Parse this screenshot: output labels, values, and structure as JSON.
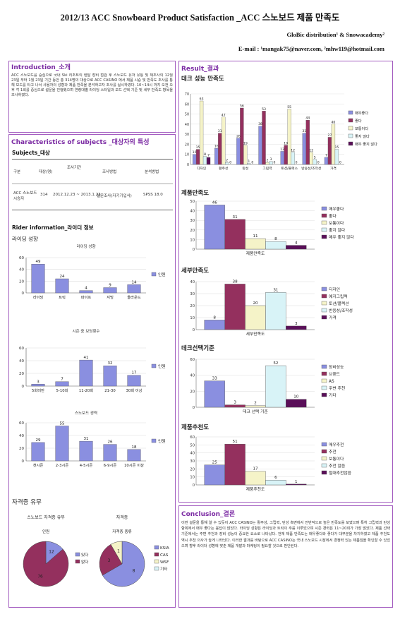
{
  "header": {
    "title": "2012/13 ACC Snowboard Product Satisfaction _ACC 스노보드 제품 만족도",
    "affiliation": "GloBic distribution¹ & Snowacademy²",
    "email": "E-mail : ¹mangak75@naver.com, ²mhw119@hotmail.com"
  },
  "introduction": {
    "title": "Introduction_소개",
    "text": "ACC 스노보드를 중심으로 국내 Ski 리조트의 렌탈 장비 점검 후 스노보드 유저 유통 및 제조사의 12월 23일 부터 1월 23일 기간 동안 총 314명의 대상으로 ACC CASINO 에서 제품 시승 및 만족도 조사를 통해 보드를 타고 나서 사용자의 성향과 제품 만족을 분석하고자 조사를 실시하였다. 10~14시 까지 오전 오후 각 1회를 중심으로 설문을 진행했으며 연령대별 라이딩 스타일과 보드 선택 기준 및 세부 만족도 항목을 조사하였다."
  },
  "subjects": {
    "title": "Characteristics of subjects _대상자의 특성",
    "subtitle": "Subjects_대상",
    "headers": [
      "구분",
      "대상(명)",
      "조사기간",
      "조사방법",
      "분석방법"
    ],
    "row": [
      "ACC 스노보드 시승자",
      "314",
      "2012.12.23 ~ 2013.1.23",
      "설문조사(자기기입식)",
      "SPSS 18.0"
    ]
  },
  "rider": {
    "title": "Rider information_라이더 정보",
    "style_label": "라이딩 성향"
  },
  "satisfaction_deck": {
    "title": "데크 성능 만족도"
  },
  "overall_label": "제품만족도",
  "detail_label": "세부만족도",
  "criteria_label": "데크선택기준",
  "recommend_label": "제품추천도",
  "cert_label": "자격증 유무",
  "results_title": "Result_결과",
  "conclusion": {
    "title": "Conclusion_결론",
    "text": "이번 설문을 통해 알 수 있듯이 ACC CASINO는 활주성, 그립력, 탄성 측면에서 전반적으로 높은 만족도를 보였으며 특히 그립력과 탄성 항목에서 매우 좋다는 응답이 많았다. 라이딩 성향은 라이딩과 트릭이 주를 이루었으며 시즌 경력은 11~20회가 가장 많았다. 제품 선택 기준에서는 주변 추천과 장비 성능이 중요한 요소로 나타났다. 전체 제품 만족도는 매우좋다와 좋다가 대부분을 차지하였고 제품 추천도 역시 추천 의사가 높게 나타났다. 이러한 결과를 바탕으로 ACC CASINO는 국내 스노보드 시장에서 경쟁력 있는 제품임을 확인할 수 있었으며 향후 라이더 성향에 맞춘 제품 개발과 마케팅이 필요할 것으로 판단된다."
  },
  "chart_data": [
    {
      "id": "riding-style",
      "type": "bar",
      "title": "라이딩 성향",
      "categories": [
        "라이딩",
        "트릭",
        "파이프",
        "지빙",
        "올라운드"
      ],
      "series": [
        {
          "name": "인원",
          "values": [
            49,
            24,
            4,
            9,
            14
          ]
        }
      ],
      "ylim": [
        0,
        60
      ],
      "yticks": [
        0,
        20,
        40,
        60
      ],
      "color": "#8a8fe0"
    },
    {
      "id": "season-count",
      "type": "bar",
      "title": "시즌 중 보딩횟수",
      "categories": [
        "5회미만",
        "5-10회",
        "11-20회",
        "21-30",
        "30회 이상"
      ],
      "series": [
        {
          "name": "인원",
          "values": [
            3,
            7,
            41,
            32,
            17
          ]
        }
      ],
      "ylim": [
        0,
        60
      ],
      "yticks": [
        0,
        20,
        40,
        60
      ],
      "color": "#8a8fe0"
    },
    {
      "id": "snowboard-career",
      "type": "bar",
      "title": "스노보드 경력",
      "categories": [
        "첫시즌",
        "2-3시즌",
        "4-5시즌",
        "6-9시즌",
        "10시즌 이상"
      ],
      "series": [
        {
          "name": "인원",
          "values": [
            29,
            55,
            31,
            26,
            18
          ]
        }
      ],
      "ylim": [
        0,
        60
      ],
      "yticks": [
        0,
        20,
        40,
        60
      ],
      "color": "#8a8fe0"
    },
    {
      "id": "deck-performance",
      "type": "bar",
      "title": "데크 성능 만족도",
      "categories": [
        "디자인",
        "활주성",
        "탄성",
        "그립력",
        "토션/플렉스",
        "반응성/조작성",
        "가격"
      ],
      "series": [
        {
          "name": "매우좋다",
          "values": [
            10,
            16,
            26,
            38,
            13,
            31,
            7
          ],
          "color": "#8a8fe0"
        },
        {
          "name": "좋다",
          "values": [
            15,
            31,
            56,
            53,
            19,
            44,
            27
          ],
          "color": "#94305e"
        },
        {
          "name": "보통이다",
          "values": [
            63,
            47,
            19,
            2,
            55,
            12,
            40
          ],
          "color": "#f5f3c8"
        },
        {
          "name": "좋지 않다",
          "values": [
            8,
            2,
            1,
            3,
            12,
            5,
            15
          ],
          "color": "#d8f3f7"
        },
        {
          "name": "매우 좋지 않다",
          "values": [
            7,
            0,
            0,
            0,
            0,
            0,
            0
          ],
          "color": "#5a0f59"
        }
      ],
      "ylim": [
        0,
        70
      ],
      "yticks": [
        0,
        10,
        20,
        30,
        40,
        50,
        60,
        70
      ]
    },
    {
      "id": "overall-satisfaction",
      "type": "bar",
      "title": "제품만족도",
      "categories": [
        "제품만족도"
      ],
      "series": [
        {
          "name": "매우좋다",
          "values": [
            46
          ],
          "color": "#8a8fe0"
        },
        {
          "name": "좋다",
          "values": [
            31
          ],
          "color": "#94305e"
        },
        {
          "name": "보통이다",
          "values": [
            11
          ],
          "color": "#f5f3c8"
        },
        {
          "name": "좋지 않다",
          "values": [
            8
          ],
          "color": "#d8f3f7"
        },
        {
          "name": "매우 좋지 않다",
          "values": [
            4
          ],
          "color": "#5a0f59"
        }
      ],
      "ylim": [
        0,
        50
      ],
      "yticks": [
        0,
        10,
        20,
        30,
        40,
        50
      ]
    },
    {
      "id": "detail-satisfaction",
      "type": "bar",
      "title": "세부만족도",
      "categories": [
        "세부만족도"
      ],
      "series": [
        {
          "name": "디자인",
          "values": [
            8
          ],
          "color": "#8a8fe0"
        },
        {
          "name": "에지그립력",
          "values": [
            38
          ],
          "color": "#94305e"
        },
        {
          "name": "토션/플렉션",
          "values": [
            20
          ],
          "color": "#f5f3c8"
        },
        {
          "name": "반응성/조작성",
          "values": [
            31
          ],
          "color": "#d8f3f7"
        },
        {
          "name": "가격",
          "values": [
            3
          ],
          "color": "#5a0f59"
        }
      ],
      "ylim": [
        0,
        40
      ],
      "yticks": [
        0,
        10,
        20,
        30,
        40
      ]
    },
    {
      "id": "deck-criteria",
      "type": "bar",
      "title": "데크선택기준",
      "categories": [
        "데크 선택 기준"
      ],
      "series": [
        {
          "name": "장비성능",
          "values": [
            33
          ],
          "color": "#8a8fe0"
        },
        {
          "name": "브랜드",
          "values": [
            3
          ],
          "color": "#94305e"
        },
        {
          "name": "AS",
          "values": [
            2
          ],
          "color": "#f5f3c8"
        },
        {
          "name": "주변 추천",
          "values": [
            52
          ],
          "color": "#d8f3f7"
        },
        {
          "name": "기타",
          "values": [
            10
          ],
          "color": "#5a0f59"
        }
      ],
      "ylim": [
        0,
        60
      ],
      "yticks": [
        0,
        20,
        40,
        60
      ]
    },
    {
      "id": "recommend",
      "type": "bar",
      "title": "제품추천도",
      "categories": [
        "제품추천도"
      ],
      "series": [
        {
          "name": "매우추천",
          "values": [
            25
          ],
          "color": "#8a8fe0"
        },
        {
          "name": "추천",
          "values": [
            51
          ],
          "color": "#94305e"
        },
        {
          "name": "보통이다",
          "values": [
            17
          ],
          "color": "#f5f3c8"
        },
        {
          "name": "추천 않음",
          "values": [
            6
          ],
          "color": "#d8f3f7"
        },
        {
          "name": "절대추천않음",
          "values": [
            1
          ],
          "color": "#5a0f59"
        }
      ],
      "ylim": [
        0,
        60
      ],
      "yticks": [
        0,
        10,
        20,
        30,
        40,
        50,
        60
      ]
    },
    {
      "id": "cert-have",
      "type": "pie",
      "title": "스노보드 자격증 유무",
      "inner_label": "인원",
      "series": [
        {
          "name": "있다",
          "value": 12,
          "color": "#8a8fe0"
        },
        {
          "name": "없다",
          "value": 76,
          "color": "#94305e"
        }
      ]
    },
    {
      "id": "cert-type",
      "type": "pie",
      "title": "자격증",
      "inner_label": "자격증 종류",
      "series": [
        {
          "name": "KSIA",
          "value": 8,
          "color": "#8a8fe0"
        },
        {
          "name": "CAS",
          "value": 3,
          "color": "#94305e"
        },
        {
          "name": "WSF",
          "value": 1,
          "color": "#f5f3c8"
        },
        {
          "name": "기타",
          "value": 0,
          "color": "#d8f3f7"
        }
      ]
    }
  ]
}
